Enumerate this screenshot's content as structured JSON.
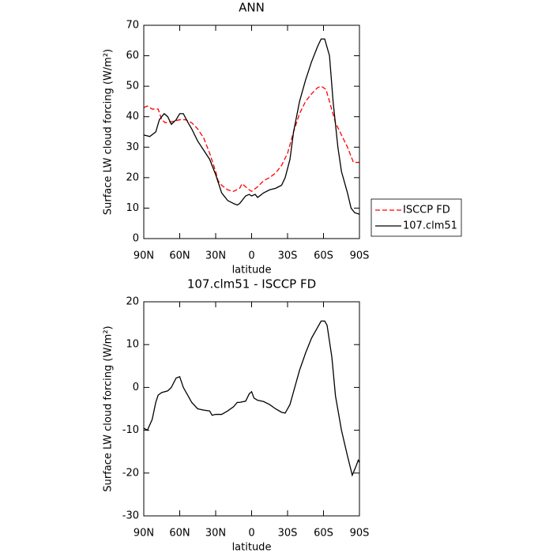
{
  "chart_data": [
    {
      "type": "line",
      "title": "ANN",
      "xlabel": "latitude",
      "ylabel": "Surface LW cloud forcing (W/m²)",
      "xlim": [
        90,
        -90
      ],
      "ylim": [
        0,
        70
      ],
      "xticks": [
        {
          "value": 90,
          "label": "90N"
        },
        {
          "value": 60,
          "label": "60N"
        },
        {
          "value": 30,
          "label": "30N"
        },
        0,
        {
          "value": -30,
          "label": "30S"
        },
        {
          "value": -60,
          "label": "60S"
        },
        {
          "value": -90,
          "label": "90S"
        }
      ],
      "yticks": [
        0,
        10,
        20,
        30,
        40,
        50,
        60,
        70
      ],
      "legend": "right",
      "series": [
        {
          "name": "ISCCP FD",
          "color": "#ff0000",
          "style": "dashed",
          "x": [
            90,
            87,
            83,
            78,
            75,
            72,
            65,
            60,
            55,
            50,
            45,
            40,
            35,
            30,
            28,
            25,
            20,
            15,
            10,
            8,
            5,
            2,
            0,
            -5,
            -10,
            -15,
            -20,
            -25,
            -30,
            -35,
            -40,
            -45,
            -50,
            -55,
            -58,
            -62,
            -65,
            -70,
            -75,
            -80,
            -85,
            -90
          ],
          "values": [
            43,
            43.5,
            42.5,
            42.5,
            39,
            38,
            38.5,
            39,
            39,
            38,
            36,
            33,
            28,
            22,
            19,
            17.5,
            16,
            15.5,
            16.5,
            18,
            17,
            16,
            15.5,
            17,
            19,
            20,
            21.5,
            24,
            28,
            35,
            41,
            45,
            47.5,
            49.5,
            50,
            49,
            45,
            38,
            34,
            30,
            25,
            25
          ]
        },
        {
          "name": "107.clm51",
          "color": "#000000",
          "style": "solid",
          "x": [
            90,
            85,
            80,
            77,
            73,
            70,
            67,
            63,
            60,
            57,
            53,
            50,
            45,
            40,
            35,
            30,
            25,
            20,
            15,
            12,
            10,
            5,
            2,
            0,
            -3,
            -5,
            -10,
            -15,
            -20,
            -25,
            -28,
            -32,
            -35,
            -40,
            -45,
            -50,
            -55,
            -58,
            -61,
            -65,
            -68,
            -72,
            -75,
            -80,
            -83,
            -86,
            -90
          ],
          "values": [
            34,
            33.5,
            35,
            39,
            41,
            40,
            37.5,
            39,
            41,
            41,
            38,
            36,
            32,
            29,
            26,
            21,
            15,
            12.5,
            11.5,
            11,
            11.5,
            14,
            14.5,
            14,
            14.5,
            13.5,
            15,
            16,
            16.5,
            17.5,
            20,
            26,
            35,
            45,
            52,
            58,
            63,
            65.5,
            65.5,
            60,
            45,
            30,
            22,
            15,
            10,
            8.5,
            8
          ]
        }
      ]
    },
    {
      "type": "line",
      "title": "107.clm51 - ISCCP FD",
      "xlabel": "latitude",
      "ylabel": "Surface LW cloud forcing (W/m²)",
      "xlim": [
        90,
        -90
      ],
      "ylim": [
        -30,
        20
      ],
      "xticks": [
        {
          "value": 90,
          "label": "90N"
        },
        {
          "value": 60,
          "label": "60N"
        },
        {
          "value": 30,
          "label": "30N"
        },
        0,
        {
          "value": -30,
          "label": "30S"
        },
        {
          "value": -60,
          "label": "60S"
        },
        {
          "value": -90,
          "label": "90S"
        }
      ],
      "yticks": [
        -30,
        -20,
        -10,
        0,
        10,
        20
      ],
      "color": "#000000",
      "x": [
        90,
        87,
        83,
        80,
        78,
        75,
        70,
        67,
        63,
        60,
        57,
        53,
        50,
        45,
        40,
        35,
        33,
        30,
        25,
        20,
        15,
        12,
        10,
        5,
        2,
        0,
        -2,
        -5,
        -10,
        -15,
        -20,
        -25,
        -28,
        -32,
        -35,
        -40,
        -45,
        -50,
        -55,
        -58,
        -61,
        -63,
        -67,
        -70,
        -75,
        -80,
        -84,
        -87,
        -89,
        -90
      ],
      "values": [
        -9.5,
        -10,
        -7.5,
        -3.5,
        -1.8,
        -1.2,
        -0.8,
        0,
        2.2,
        2.5,
        0,
        -2,
        -3.5,
        -5,
        -5.3,
        -5.5,
        -6.5,
        -6.3,
        -6.3,
        -5.5,
        -4.5,
        -3.5,
        -3.5,
        -3.2,
        -1.5,
        -1,
        -2.5,
        -3,
        -3.3,
        -4,
        -5,
        -5.8,
        -6,
        -4,
        -1,
        4,
        8,
        11.5,
        14,
        15.5,
        15.5,
        14.5,
        7,
        -2,
        -10,
        -16,
        -20.5,
        -18.5,
        -17,
        -17.5
      ]
    }
  ]
}
